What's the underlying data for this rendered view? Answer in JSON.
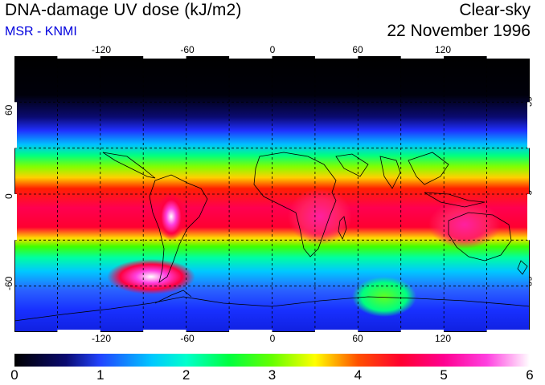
{
  "title": "DNA-damage UV dose (kJ/m2)",
  "subtitle": "MSR - KNMI",
  "condition": "Clear-sky",
  "date": "22 November 1996",
  "longitude_ticks": [
    "-120",
    "-60",
    "0",
    "60",
    "120"
  ],
  "latitude_ticks": [
    "60",
    "0",
    "-60"
  ],
  "colorbar": {
    "labels": [
      "0",
      "1",
      "2",
      "3",
      "4",
      "5",
      "6"
    ],
    "stops": [
      {
        "value": 0,
        "color": "#000000"
      },
      {
        "value": 0.6,
        "color": "#0a0a70"
      },
      {
        "value": 1.0,
        "color": "#2244ff"
      },
      {
        "value": 1.6,
        "color": "#00c8ff"
      },
      {
        "value": 2.0,
        "color": "#00ffcc"
      },
      {
        "value": 2.5,
        "color": "#00ff40"
      },
      {
        "value": 3.0,
        "color": "#66ff00"
      },
      {
        "value": 3.5,
        "color": "#ffff00"
      },
      {
        "value": 4.0,
        "color": "#ff5000"
      },
      {
        "value": 4.5,
        "color": "#ff0030"
      },
      {
        "value": 5.0,
        "color": "#ff0090"
      },
      {
        "value": 5.5,
        "color": "#ff40e0"
      },
      {
        "value": 6.0,
        "color": "#ffffff"
      }
    ]
  },
  "map_extent": {
    "lon": [
      -180,
      180
    ],
    "lat": [
      -90,
      90
    ]
  }
}
